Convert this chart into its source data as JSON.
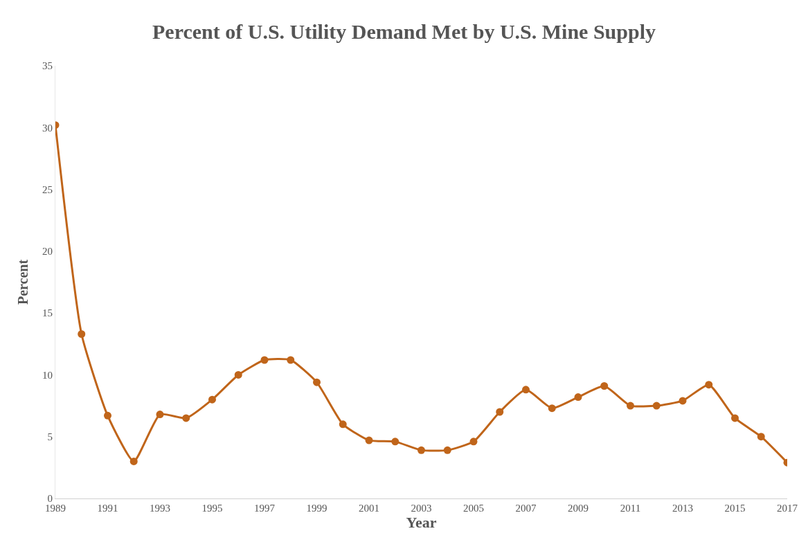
{
  "chart_data": {
    "type": "line",
    "title": "Percent of U.S. Utility Demand Met by U.S. Mine Supply",
    "xlabel": "Year",
    "ylabel": "Percent",
    "x": [
      1989,
      1990,
      1991,
      1992,
      1993,
      1994,
      1995,
      1996,
      1997,
      1998,
      1999,
      2000,
      2001,
      2002,
      2003,
      2004,
      2005,
      2006,
      2007,
      2008,
      2009,
      2010,
      2011,
      2012,
      2013,
      2014,
      2015,
      2016,
      2017
    ],
    "series": [
      {
        "color": "#c0651a",
        "values": [
          30.2,
          13.3,
          6.7,
          3.0,
          6.8,
          6.5,
          8.0,
          10.0,
          11.2,
          11.2,
          9.4,
          6.0,
          4.7,
          4.6,
          3.9,
          3.9,
          4.6,
          7.0,
          8.8,
          7.3,
          8.2,
          9.1,
          7.5,
          7.5,
          7.9,
          9.2,
          6.5,
          5.0,
          2.9
        ]
      }
    ],
    "xlim": [
      1989,
      2017
    ],
    "xticks": [
      1989,
      1991,
      1993,
      1995,
      1997,
      1999,
      2001,
      2003,
      2005,
      2007,
      2009,
      2011,
      2013,
      2015,
      2017
    ],
    "ylim": [
      0,
      35
    ],
    "yticks": [
      0,
      5,
      10,
      15,
      20,
      25,
      30,
      35
    ],
    "marker": "circle",
    "line_style": "solid"
  }
}
